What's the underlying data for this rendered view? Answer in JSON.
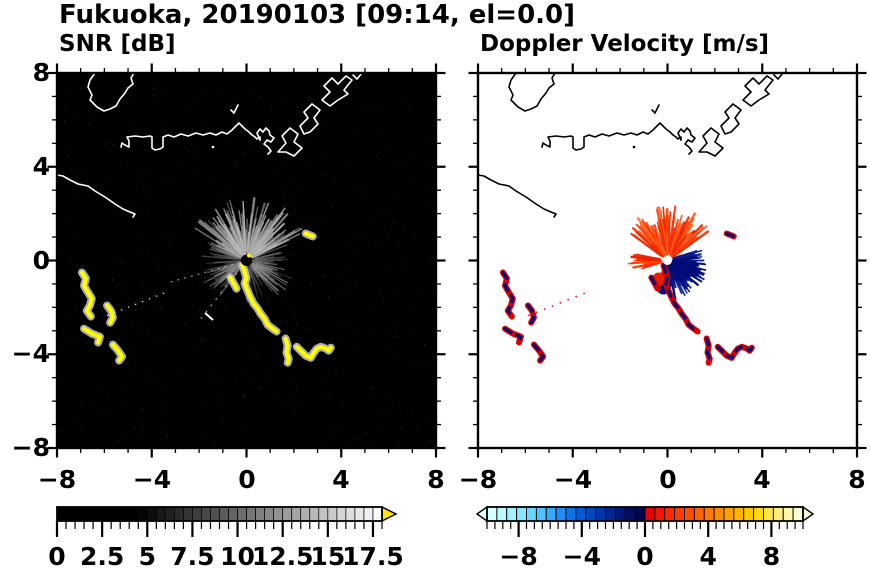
{
  "title": "Fukuoka, 20190103 [09:14, el=0.0]",
  "panels": {
    "snr": {
      "title": "SNR [dB]",
      "bg": "#000000",
      "coast_color": "#ffffff",
      "echo_color": "#ffff00",
      "echo_halo_color": "#c8c8c8",
      "clutter_color": "#9a9a9a"
    },
    "vel": {
      "title": "Doppler Velocity [m/s]",
      "bg": "#ffffff",
      "coast_color": "#000000",
      "away_color": "#ff3c00",
      "toward_color": "#000a78",
      "echo_color": "#d80000"
    }
  },
  "axes": {
    "x_range": [
      -8,
      8
    ],
    "y_range": [
      -8,
      8
    ],
    "x_tick_values": [
      -8,
      -4,
      0,
      4,
      8
    ],
    "x_tick_labels": [
      "−8",
      "−4",
      "0",
      "4",
      "8"
    ],
    "y_tick_values": [
      8,
      4,
      0,
      -4,
      -8
    ],
    "y_tick_labels": [
      "8",
      "4",
      "0",
      "−4",
      "−8"
    ],
    "minor_step": 1
  },
  "colorbars": {
    "snr": {
      "range": [
        0,
        18
      ],
      "cells": 36,
      "minor_step": 0.5,
      "tick_values": [
        0,
        2.5,
        5,
        7.5,
        10,
        12.5,
        15,
        17.5
      ],
      "tick_labels": [
        "0",
        "2.5",
        "5",
        "7.5",
        "10",
        "12.5",
        "15",
        "17.5"
      ],
      "style": "grayscale",
      "arrows": [
        "right"
      ],
      "over_arrow_color": "#ffe400"
    },
    "vel": {
      "range": [
        -10,
        10
      ],
      "cells": 32,
      "minor_step": 0.5,
      "tick_values": [
        -8,
        -4,
        0,
        4,
        8
      ],
      "tick_labels": [
        "−8",
        "−4",
        "0",
        "4",
        "8"
      ],
      "style": "discrete",
      "arrows": [
        "left",
        "right"
      ],
      "under_arrow_color": "#e4ffff",
      "over_arrow_color": "#ffffe4",
      "colors": [
        "#d6ffff",
        "#bdfaff",
        "#a3f2ff",
        "#87e6ff",
        "#6bd6ff",
        "#50c2ff",
        "#36aaff",
        "#1e8ef8",
        "#0c74ea",
        "#005cd6",
        "#0048c0",
        "#0036a8",
        "#002690",
        "#001878",
        "#000e62",
        "#00064e",
        "#e80000",
        "#f51400",
        "#ff2800",
        "#ff3c00",
        "#ff5000",
        "#ff6400",
        "#ff7800",
        "#ff8c00",
        "#ffa000",
        "#ffb400",
        "#ffc800",
        "#ffd91e",
        "#ffe54d",
        "#ffef80",
        "#fff7ad",
        "#ffffd6"
      ]
    }
  },
  "chart_data": [
    {
      "panel": "snr",
      "type": "heatmap",
      "title": "SNR [dB]",
      "x_range": [
        -8,
        8
      ],
      "y_range": [
        -8,
        8
      ],
      "units": "dB",
      "colorbar_range": [
        0,
        18
      ],
      "radar_center": [
        0,
        0
      ],
      "clutter_fan": {
        "center": [
          0,
          0
        ],
        "max_radius_km": 2.3,
        "dense_sector_deg": [
          20,
          160
        ]
      },
      "features": [
        {
          "name": "echo-chain-head",
          "value": "high-SNR (>18 dB)",
          "points": [
            [
              -0.17,
              -0.21
            ],
            [
              0.0,
              -0.73
            ],
            [
              -0.08,
              -0.98
            ],
            [
              0.04,
              -1.28
            ],
            [
              0.17,
              -1.58
            ],
            [
              0.3,
              -1.84
            ],
            [
              0.47,
              -2.05
            ],
            [
              0.59,
              -2.26
            ],
            [
              0.76,
              -2.48
            ],
            [
              0.89,
              -2.74
            ],
            [
              1.1,
              -2.91
            ],
            [
              1.27,
              -3.03
            ]
          ]
        },
        {
          "name": "echo-branch",
          "points": [
            [
              -0.68,
              -0.73
            ],
            [
              -0.42,
              -1.2
            ]
          ]
        },
        {
          "name": "echo-vertical",
          "points": [
            [
              1.65,
              -3.33
            ],
            [
              1.74,
              -3.63
            ],
            [
              1.69,
              -3.93
            ],
            [
              1.78,
              -4.19
            ],
            [
              1.74,
              -4.36
            ]
          ]
        },
        {
          "name": "echo-v-cluster",
          "points": [
            [
              2.12,
              -3.68
            ],
            [
              2.29,
              -3.85
            ],
            [
              2.5,
              -4.06
            ],
            [
              2.71,
              -4.15
            ],
            [
              2.84,
              -3.93
            ],
            [
              2.97,
              -3.76
            ],
            [
              3.14,
              -3.68
            ],
            [
              3.35,
              -3.76
            ],
            [
              3.47,
              -3.85
            ],
            [
              3.56,
              -3.72
            ]
          ]
        },
        {
          "name": "echo-west-s",
          "points": [
            [
              -6.95,
              -0.51
            ],
            [
              -6.78,
              -0.77
            ],
            [
              -6.86,
              -1.07
            ],
            [
              -6.69,
              -1.37
            ],
            [
              -6.53,
              -1.62
            ],
            [
              -6.61,
              -1.92
            ],
            [
              -6.74,
              -2.14
            ],
            [
              -6.57,
              -2.39
            ]
          ]
        },
        {
          "name": "echo-west-hook",
          "points": [
            [
              -5.89,
              -1.92
            ],
            [
              -5.72,
              -2.14
            ],
            [
              -5.64,
              -2.44
            ],
            [
              -5.76,
              -2.65
            ]
          ]
        },
        {
          "name": "echo-west-lower-a",
          "points": [
            [
              -6.86,
              -2.91
            ],
            [
              -6.53,
              -3.12
            ],
            [
              -6.19,
              -3.25
            ],
            [
              -6.27,
              -3.5
            ]
          ]
        },
        {
          "name": "echo-west-lower-b",
          "points": [
            [
              -5.64,
              -3.59
            ],
            [
              -5.42,
              -3.85
            ],
            [
              -5.25,
              -4.1
            ],
            [
              -5.38,
              -4.27
            ]
          ]
        },
        {
          "name": "echo-spot-ne",
          "points": [
            [
              2.5,
              1.15
            ],
            [
              2.8,
              1.03
            ]
          ]
        },
        {
          "name": "echo-dotted-trail",
          "style": "dotted",
          "points": [
            [
              -5.89,
              -2.35
            ],
            [
              -3.43,
              -1.37
            ]
          ]
        }
      ]
    },
    {
      "panel": "vel",
      "type": "heatmap",
      "title": "Doppler Velocity [m/s]",
      "x_range": [
        -8,
        8
      ],
      "y_range": [
        -8,
        8
      ],
      "units": "m/s",
      "colorbar_range": [
        -10,
        10
      ],
      "radar_center": [
        0,
        0
      ],
      "velocity_fans": {
        "positive_away": {
          "sector_deg": [
            35,
            145
          ],
          "max_radius_km": 1.9,
          "sign": "+ (red/orange)"
        },
        "positive_west": {
          "sector_deg": [
            165,
            200
          ],
          "max_radius_km": 1.3
        },
        "negative_toward": {
          "sector_deg": [
            -80,
            20
          ],
          "max_radius_km": 1.4,
          "sign": "- (navy)"
        }
      },
      "features": [
        {
          "name": "echo-chain-head",
          "value": "mixed +/- velocities",
          "points": [
            [
              -0.17,
              -0.21
            ],
            [
              0.0,
              -0.73
            ],
            [
              -0.08,
              -0.98
            ],
            [
              0.04,
              -1.28
            ],
            [
              0.17,
              -1.58
            ],
            [
              0.3,
              -1.84
            ],
            [
              0.47,
              -2.05
            ],
            [
              0.59,
              -2.26
            ],
            [
              0.76,
              -2.48
            ],
            [
              0.89,
              -2.74
            ],
            [
              1.1,
              -2.91
            ],
            [
              1.27,
              -3.03
            ]
          ]
        },
        {
          "name": "echo-branch",
          "points": [
            [
              -0.68,
              -0.73
            ],
            [
              -0.42,
              -1.2
            ]
          ]
        },
        {
          "name": "echo-vertical",
          "points": [
            [
              1.65,
              -3.33
            ],
            [
              1.74,
              -3.63
            ],
            [
              1.69,
              -3.93
            ],
            [
              1.78,
              -4.19
            ],
            [
              1.74,
              -4.36
            ]
          ]
        },
        {
          "name": "echo-v-cluster",
          "points": [
            [
              2.12,
              -3.68
            ],
            [
              2.29,
              -3.85
            ],
            [
              2.5,
              -4.06
            ],
            [
              2.71,
              -4.15
            ],
            [
              2.84,
              -3.93
            ],
            [
              2.97,
              -3.76
            ],
            [
              3.14,
              -3.68
            ],
            [
              3.35,
              -3.76
            ],
            [
              3.47,
              -3.85
            ],
            [
              3.56,
              -3.72
            ]
          ]
        },
        {
          "name": "echo-west-s",
          "points": [
            [
              -6.95,
              -0.51
            ],
            [
              -6.78,
              -0.77
            ],
            [
              -6.86,
              -1.07
            ],
            [
              -6.69,
              -1.37
            ],
            [
              -6.53,
              -1.62
            ],
            [
              -6.61,
              -1.92
            ],
            [
              -6.74,
              -2.14
            ],
            [
              -6.57,
              -2.39
            ]
          ]
        },
        {
          "name": "echo-west-hook",
          "points": [
            [
              -5.89,
              -1.92
            ],
            [
              -5.72,
              -2.14
            ],
            [
              -5.64,
              -2.44
            ],
            [
              -5.76,
              -2.65
            ]
          ]
        },
        {
          "name": "echo-west-lower-a",
          "points": [
            [
              -6.86,
              -2.91
            ],
            [
              -6.53,
              -3.12
            ],
            [
              -6.19,
              -3.25
            ],
            [
              -6.27,
              -3.5
            ]
          ]
        },
        {
          "name": "echo-west-lower-b",
          "points": [
            [
              -5.64,
              -3.59
            ],
            [
              -5.42,
              -3.85
            ],
            [
              -5.25,
              -4.1
            ],
            [
              -5.38,
              -4.27
            ]
          ]
        },
        {
          "name": "echo-spot-ne",
          "points": [
            [
              2.5,
              1.15
            ],
            [
              2.8,
              1.03
            ]
          ]
        },
        {
          "name": "echo-dotted-trail",
          "style": "dotted",
          "points": [
            [
              -5.89,
              -2.35
            ],
            [
              -3.43,
              -1.37
            ]
          ]
        }
      ]
    }
  ]
}
